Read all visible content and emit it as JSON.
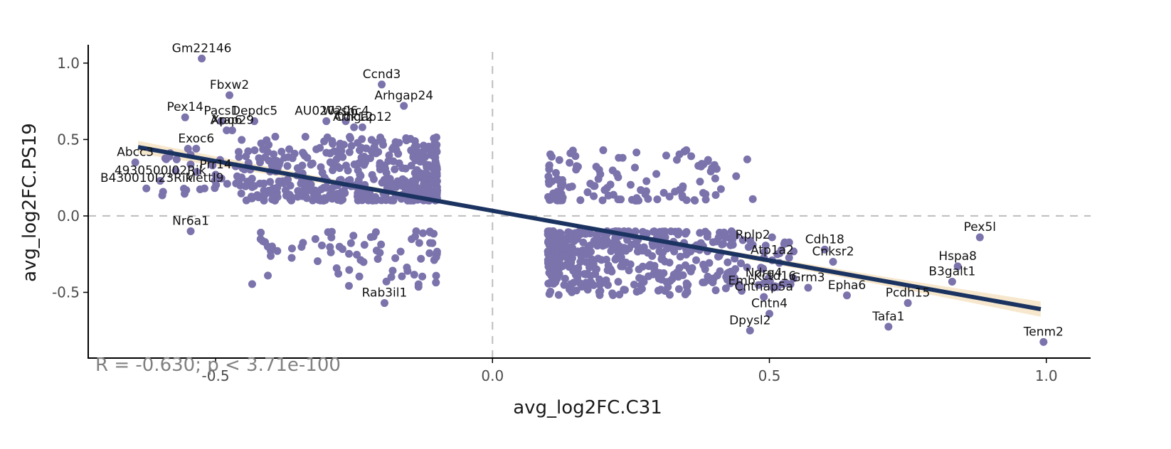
{
  "colors": {
    "points": "#7b73ab",
    "fit_line": "#1b3360",
    "ci_band": "#f6e6c8",
    "zero_lines": "#bdbdbd",
    "stat_text": "#808080"
  },
  "chart_data": {
    "type": "scatter",
    "xlabel": "avg_log2FC.C31",
    "ylabel": "avg_log2FC.PS19",
    "xlim": [
      -0.73,
      1.08
    ],
    "ylim": [
      -0.93,
      1.12
    ],
    "x_ticks": [
      -0.5,
      0.0,
      0.5,
      1.0
    ],
    "x_tick_labels": [
      "-0.5",
      "0.0",
      "0.5",
      "1.0"
    ],
    "y_ticks": [
      -0.5,
      0.0,
      0.5,
      1.0
    ],
    "y_tick_labels": [
      "-0.5",
      "0.0",
      "0.5",
      "1.0"
    ],
    "zero_reference_lines": true,
    "grid": false,
    "fit": {
      "type": "linear",
      "x0": -0.64,
      "y0": 0.45,
      "x1": 0.99,
      "y1": -0.61
    },
    "stat_annotation": "R = -0.630; p < 3.71e-100",
    "labeled_points": [
      {
        "label": "Gm22146",
        "x": -0.525,
        "y": 1.03
      },
      {
        "label": "Fbxw2",
        "x": -0.475,
        "y": 0.79
      },
      {
        "label": "Ccnd3",
        "x": -0.2,
        "y": 0.86
      },
      {
        "label": "Arhgap24",
        "x": -0.16,
        "y": 0.72
      },
      {
        "label": "Pex14",
        "x": -0.555,
        "y": 0.645
      },
      {
        "label": "Pacs1",
        "x": -0.49,
        "y": 0.62
      },
      {
        "label": "Depdc5",
        "x": -0.43,
        "y": 0.62
      },
      {
        "label": "Xpo6",
        "x": -0.48,
        "y": 0.56
      },
      {
        "label": "Arap29",
        "x": -0.47,
        "y": 0.56
      },
      {
        "label": "AU020206",
        "x": -0.3,
        "y": 0.62
      },
      {
        "label": "Washc4",
        "x": -0.265,
        "y": 0.62
      },
      {
        "label": "Cdk12",
        "x": -0.25,
        "y": 0.58
      },
      {
        "label": "Arhgap12",
        "x": -0.235,
        "y": 0.58
      },
      {
        "label": "Abcc3",
        "x": -0.645,
        "y": 0.35
      },
      {
        "label": "Exoc6",
        "x": -0.535,
        "y": 0.44
      },
      {
        "label": "Nr6a1",
        "x": -0.545,
        "y": -0.1
      },
      {
        "label": "Rab3il1",
        "x": -0.195,
        "y": -0.57
      },
      {
        "label": "B430010I23Rik",
        "x": -0.625,
        "y": 0.18
      },
      {
        "label": "4930500J02Rik",
        "x": -0.6,
        "y": 0.23
      },
      {
        "label": "Prr14",
        "x": -0.5,
        "y": 0.27
      },
      {
        "label": "Mettl9",
        "x": -0.52,
        "y": 0.18
      },
      {
        "label": "Rplp2",
        "x": 0.47,
        "y": -0.19
      },
      {
        "label": "Atp1a2",
        "x": 0.505,
        "y": -0.29
      },
      {
        "label": "Cdh18",
        "x": 0.6,
        "y": -0.22
      },
      {
        "label": "Cnksr2",
        "x": 0.615,
        "y": -0.3
      },
      {
        "label": "Ndrg4",
        "x": 0.49,
        "y": -0.44
      },
      {
        "label": "Kctd16",
        "x": 0.51,
        "y": -0.46
      },
      {
        "label": "Grm3",
        "x": 0.57,
        "y": -0.47
      },
      {
        "label": "Epha6",
        "x": 0.64,
        "y": -0.52
      },
      {
        "label": "Emb",
        "x": 0.45,
        "y": -0.49
      },
      {
        "label": "Cntnap5a",
        "x": 0.49,
        "y": -0.53
      },
      {
        "label": "Cntn4",
        "x": 0.5,
        "y": -0.64
      },
      {
        "label": "Dpysl2",
        "x": 0.465,
        "y": -0.75
      },
      {
        "label": "Pex5l",
        "x": 0.88,
        "y": -0.14
      },
      {
        "label": "Hspa8",
        "x": 0.84,
        "y": -0.33
      },
      {
        "label": "B3galt1",
        "x": 0.83,
        "y": -0.43
      },
      {
        "label": "Pcdh15",
        "x": 0.75,
        "y": -0.57
      },
      {
        "label": "Tafa1",
        "x": 0.715,
        "y": -0.725
      },
      {
        "label": "Tenm2",
        "x": 0.995,
        "y": -0.825
      }
    ]
  }
}
